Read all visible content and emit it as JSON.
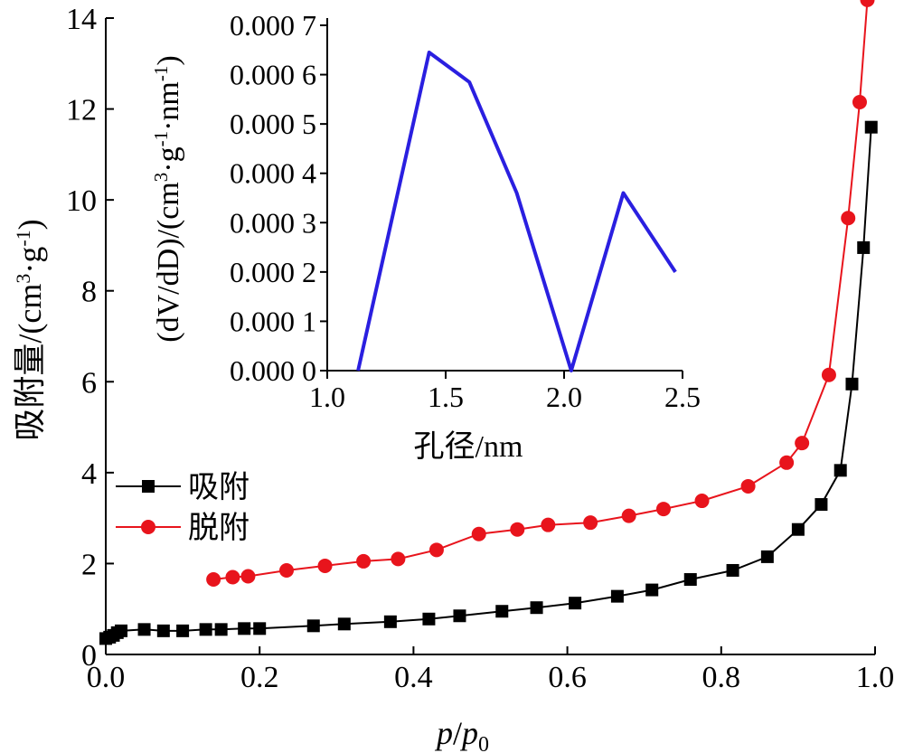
{
  "chart_data": [
    {
      "type": "line",
      "xlabel_main": "p",
      "xlabel_slash": "/",
      "xlabel_p": "p",
      "xlabel_sub": "0",
      "ylabel_text": "吸附量/(cm",
      "ylabel_sup3": "3",
      "ylabel_mid": "·g",
      "ylabel_supm1": "-1",
      "ylabel_close": ")",
      "xlim": [
        0.0,
        1.0
      ],
      "ylim": [
        0,
        14
      ],
      "x_ticks": [
        "0.0",
        "0.2",
        "0.4",
        "0.6",
        "0.8",
        "1.0"
      ],
      "y_ticks": [
        "0",
        "2",
        "4",
        "6",
        "8",
        "10",
        "12",
        "14"
      ],
      "legend_position": "middle-left",
      "series": [
        {
          "name": "吸附",
          "color": "#000000",
          "marker": "square",
          "x": [
            0.0,
            0.005,
            0.01,
            0.015,
            0.02,
            0.05,
            0.075,
            0.1,
            0.13,
            0.15,
            0.18,
            0.2,
            0.27,
            0.31,
            0.37,
            0.42,
            0.46,
            0.515,
            0.56,
            0.61,
            0.665,
            0.71,
            0.76,
            0.815,
            0.86,
            0.9,
            0.93,
            0.955,
            0.97,
            0.985,
            0.995
          ],
          "values": [
            0.35,
            0.38,
            0.42,
            0.48,
            0.52,
            0.55,
            0.52,
            0.52,
            0.55,
            0.55,
            0.57,
            0.57,
            0.63,
            0.67,
            0.72,
            0.78,
            0.85,
            0.95,
            1.03,
            1.13,
            1.28,
            1.42,
            1.65,
            1.85,
            2.15,
            2.75,
            3.3,
            4.05,
            5.95,
            8.95,
            11.6
          ]
        },
        {
          "name": "脱附",
          "color": "#e8141c",
          "marker": "circle",
          "x": [
            0.14,
            0.165,
            0.185,
            0.235,
            0.285,
            0.335,
            0.38,
            0.43,
            0.485,
            0.535,
            0.575,
            0.63,
            0.68,
            0.725,
            0.775,
            0.835,
            0.885,
            0.905,
            0.94,
            0.965,
            0.98,
            0.99
          ],
          "values": [
            1.65,
            1.7,
            1.72,
            1.85,
            1.95,
            2.05,
            2.1,
            2.3,
            2.65,
            2.75,
            2.85,
            2.9,
            3.05,
            3.2,
            3.38,
            3.7,
            4.22,
            4.65,
            6.15,
            9.6,
            12.15,
            14.4
          ]
        }
      ]
    },
    {
      "type": "line",
      "xlabel": "孔径/nm",
      "ylabel_text": "(dV/dD)/(cm",
      "ylabel_sup3": "3",
      "ylabel_mid1": "·g",
      "ylabel_supm1a": "-1",
      "ylabel_mid2": "·nm",
      "ylabel_supm1b": "-1",
      "ylabel_close": ")",
      "xlim": [
        1.0,
        2.5
      ],
      "ylim": [
        0,
        7
      ],
      "x_ticks": [
        "1.0",
        "1.5",
        "2.0",
        "2.5"
      ],
      "y_ticks": [
        "0.000 0",
        "0.000 1",
        "0.000 2",
        "0.000 3",
        "0.000 4",
        "0.000 5",
        "0.000 6",
        "0.000 7"
      ],
      "series": [
        {
          "color": "#2a1fe0",
          "x": [
            1.13,
            1.43,
            1.6,
            1.8,
            2.03,
            2.25,
            2.47
          ],
          "values": [
            0.0,
            6.45,
            5.85,
            3.6,
            0.0,
            3.6,
            2.0
          ]
        }
      ]
    }
  ]
}
